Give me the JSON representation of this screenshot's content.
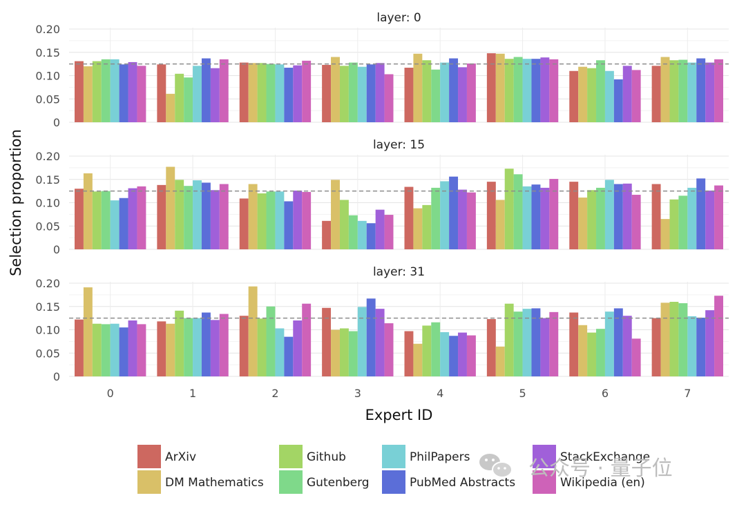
{
  "chart_data": {
    "type": "bar",
    "xlabel": "Expert ID",
    "ylabel": "Selection proportion",
    "categories": [
      "0",
      "1",
      "2",
      "3",
      "4",
      "5",
      "6",
      "7"
    ],
    "yticks": [
      "0",
      "0.05",
      "0.10",
      "0.15",
      "0.20"
    ],
    "ylim": [
      0,
      0.2
    ],
    "reference_line": 0.125,
    "grid": true,
    "legend_position": "bottom",
    "series_names": [
      "ArXiv",
      "DM Mathematics",
      "Github",
      "Gutenberg",
      "PhilPapers",
      "PubMed Abstracts",
      "StackExchange",
      "Wikipedia (en)"
    ],
    "colors": [
      "#cd6860",
      "#d9c068",
      "#a3d565",
      "#7fd98a",
      "#79d0d6",
      "#5b6ed8",
      "#a060d9",
      "#ce62b8"
    ],
    "panels": [
      {
        "title": "layer: 0",
        "values": [
          [
            0.131,
            0.12,
            0.131,
            0.135,
            0.135,
            0.124,
            0.129,
            0.121
          ],
          [
            0.124,
            0.061,
            0.104,
            0.096,
            0.121,
            0.137,
            0.116,
            0.135
          ],
          [
            0.128,
            0.127,
            0.127,
            0.125,
            0.124,
            0.117,
            0.122,
            0.132
          ],
          [
            0.123,
            0.14,
            0.121,
            0.128,
            0.119,
            0.124,
            0.127,
            0.103
          ],
          [
            0.117,
            0.147,
            0.133,
            0.113,
            0.128,
            0.137,
            0.118,
            0.126
          ],
          [
            0.148,
            0.147,
            0.136,
            0.14,
            0.136,
            0.136,
            0.139,
            0.135
          ],
          [
            0.11,
            0.119,
            0.116,
            0.133,
            0.11,
            0.092,
            0.121,
            0.112
          ],
          [
            0.121,
            0.14,
            0.133,
            0.134,
            0.128,
            0.137,
            0.128,
            0.135
          ]
        ]
      },
      {
        "title": "layer: 15",
        "values": [
          [
            0.13,
            0.163,
            0.124,
            0.125,
            0.105,
            0.11,
            0.131,
            0.135
          ],
          [
            0.138,
            0.177,
            0.149,
            0.136,
            0.148,
            0.143,
            0.127,
            0.14
          ],
          [
            0.109,
            0.14,
            0.12,
            0.124,
            0.124,
            0.103,
            0.126,
            0.123
          ],
          [
            0.061,
            0.149,
            0.106,
            0.073,
            0.061,
            0.056,
            0.085,
            0.074
          ],
          [
            0.134,
            0.088,
            0.095,
            0.132,
            0.146,
            0.156,
            0.128,
            0.122
          ],
          [
            0.145,
            0.106,
            0.173,
            0.161,
            0.135,
            0.139,
            0.132,
            0.151
          ],
          [
            0.145,
            0.111,
            0.127,
            0.132,
            0.149,
            0.14,
            0.141,
            0.117
          ],
          [
            0.14,
            0.065,
            0.107,
            0.115,
            0.132,
            0.152,
            0.126,
            0.137
          ]
        ]
      },
      {
        "title": "layer: 31",
        "values": [
          [
            0.122,
            0.191,
            0.113,
            0.112,
            0.113,
            0.105,
            0.12,
            0.112
          ],
          [
            0.118,
            0.113,
            0.141,
            0.125,
            0.125,
            0.137,
            0.121,
            0.134
          ],
          [
            0.13,
            0.193,
            0.124,
            0.15,
            0.103,
            0.085,
            0.12,
            0.156
          ],
          [
            0.147,
            0.1,
            0.103,
            0.097,
            0.149,
            0.167,
            0.145,
            0.114
          ],
          [
            0.097,
            0.07,
            0.109,
            0.116,
            0.095,
            0.087,
            0.094,
            0.088
          ],
          [
            0.123,
            0.064,
            0.156,
            0.139,
            0.145,
            0.146,
            0.125,
            0.138
          ],
          [
            0.137,
            0.11,
            0.094,
            0.102,
            0.139,
            0.146,
            0.13,
            0.081
          ],
          [
            0.125,
            0.158,
            0.16,
            0.157,
            0.129,
            0.126,
            0.142,
            0.173
          ]
        ]
      }
    ]
  },
  "watermark": {
    "text": "公众号 · 量子位",
    "icon": "wechat-icon"
  }
}
